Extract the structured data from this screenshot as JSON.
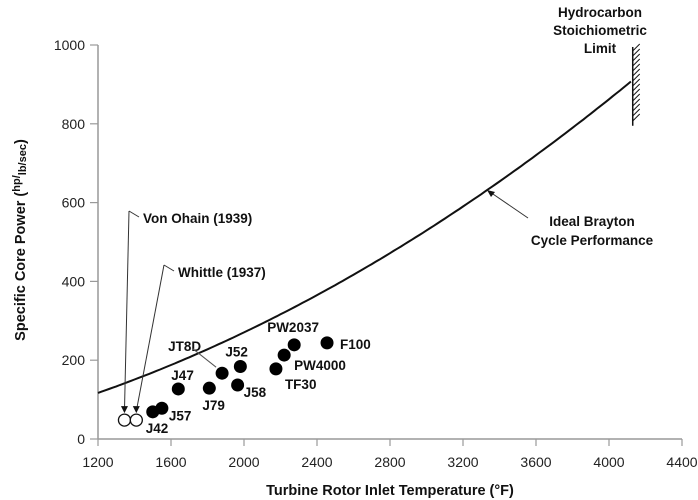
{
  "chart_data": {
    "type": "scatter",
    "xlabel": "Turbine Rotor Inlet Temperature (°F)",
    "ylabel_main": "Specific Core Power (",
    "ylabel_unit_num": "hp",
    "ylabel_unit_den": "lb/sec",
    "ylabel_close": ")",
    "xlim": [
      1200,
      4400
    ],
    "ylim": [
      0,
      1000
    ],
    "xticks": [
      "1200",
      "1600",
      "2000",
      "2400",
      "2800",
      "3200",
      "3600",
      "4000",
      "4400"
    ],
    "yticks": [
      "0",
      "200",
      "400",
      "600",
      "800",
      "1000"
    ],
    "grid": false,
    "engines": [
      {
        "name": "J42",
        "x": 1500,
        "y": 69
      },
      {
        "name": "J57",
        "x": 1550,
        "y": 78
      },
      {
        "name": "J47",
        "x": 1640,
        "y": 127
      },
      {
        "name": "J79",
        "x": 1810,
        "y": 129
      },
      {
        "name": "JT8D",
        "x": 1880,
        "y": 167
      },
      {
        "name": "J52",
        "x": 1980,
        "y": 184
      },
      {
        "name": "J58",
        "x": 1965,
        "y": 137
      },
      {
        "name": "TF30",
        "x": 2175,
        "y": 178
      },
      {
        "name": "PW4000",
        "x": 2220,
        "y": 213
      },
      {
        "name": "PW2037",
        "x": 2275,
        "y": 239
      },
      {
        "name": "F100",
        "x": 2455,
        "y": 244
      }
    ],
    "early_engines": [
      {
        "name": "Von Ohain (1939)",
        "x": 1345,
        "y": 48
      },
      {
        "name": "Whittle (1937)",
        "x": 1410,
        "y": 48
      }
    ],
    "ideal_curve": {
      "label_line1": "Ideal Brayton",
      "label_line2": "Cycle Performance",
      "x": [
        1200,
        1400,
        1600,
        1800,
        2000,
        2200,
        2400,
        2600,
        2800,
        3000,
        3200,
        3400,
        3600,
        3800,
        4000,
        4130
      ],
      "y": [
        117,
        151,
        186,
        225,
        271,
        320,
        374,
        431,
        492,
        558,
        627,
        700,
        777,
        858,
        943,
        911
      ]
    },
    "limit": {
      "label_line1": "Hydrocarbon",
      "label_line2": "Stoichiometric",
      "label_line3": "Limit",
      "x": 4130,
      "y_range": [
        795,
        995
      ]
    }
  }
}
